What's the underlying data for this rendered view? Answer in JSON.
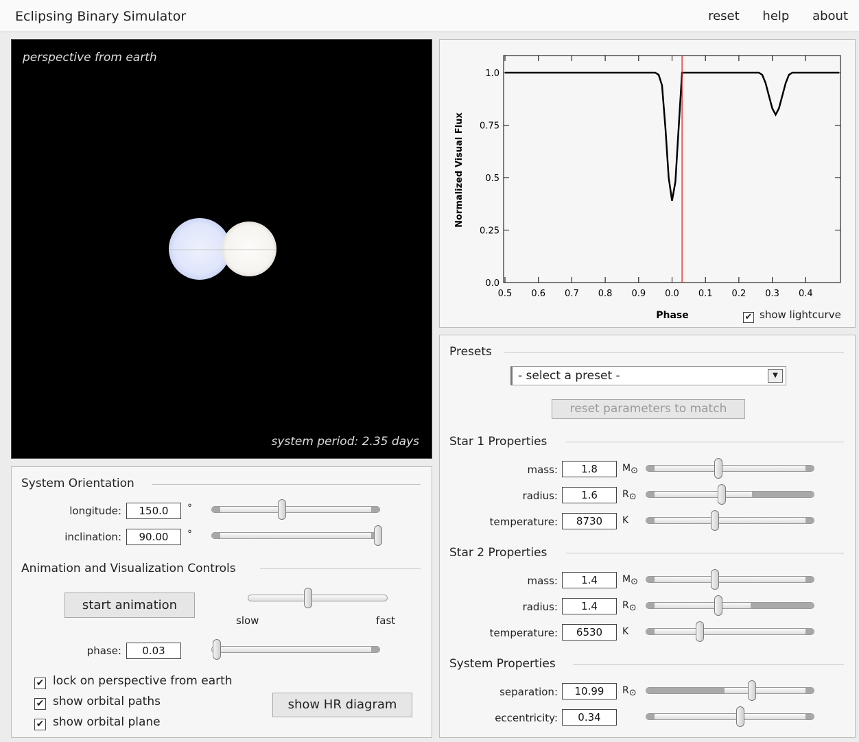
{
  "app": {
    "title": "Eclipsing Binary Simulator",
    "nav": [
      "reset",
      "help",
      "about"
    ]
  },
  "view": {
    "perspective_label": "perspective from earth",
    "period_label": "system period: 2.35 days"
  },
  "orientation": {
    "title": "System Orientation",
    "longitude": {
      "label": "longitude:",
      "value": "150.0",
      "unit": "°",
      "slider_fraction": 0.42
    },
    "inclination": {
      "label": "inclination:",
      "value": "90.00",
      "unit": "°",
      "slider_fraction": 0.99
    }
  },
  "animation": {
    "title": "Animation and Visualization Controls",
    "start_button": "start animation",
    "speed": {
      "slow_label": "slow",
      "fast_label": "fast",
      "slider_fraction": 0.43
    },
    "phase": {
      "label": "phase:",
      "value": "0.03",
      "slider_fraction": 0.03
    },
    "checkboxes": [
      {
        "label": "lock on perspective from earth",
        "checked": true
      },
      {
        "label": "show orbital paths",
        "checked": true
      },
      {
        "label": "show orbital plane",
        "checked": true
      }
    ],
    "hr_button": "show HR diagram"
  },
  "lightcurve": {
    "show_label": "show lightcurve",
    "show_checked": true
  },
  "chart_data": {
    "type": "line",
    "xlabel": "Phase",
    "ylabel": "Normalized Visual Flux",
    "x_tick_labels": [
      "0.5",
      "0.6",
      "0.7",
      "0.8",
      "0.9",
      "0.0",
      "0.1",
      "0.2",
      "0.3",
      "0.4"
    ],
    "y_tick_labels": [
      "0.0",
      "0.25",
      "0.5",
      "0.75",
      "1.0"
    ],
    "x_range": [
      -0.5,
      0.5
    ],
    "ylim": [
      0,
      1.0
    ],
    "current_phase": 0.03,
    "series": [
      {
        "x": [
          -0.5,
          -0.05,
          -0.04,
          -0.03,
          -0.02,
          -0.01,
          0.0,
          0.01,
          0.02,
          0.03,
          0.26,
          0.27,
          0.28,
          0.29,
          0.3,
          0.31,
          0.32,
          0.33,
          0.34,
          0.35,
          0.36,
          0.5
        ],
        "y": [
          1.0,
          1.0,
          0.99,
          0.94,
          0.74,
          0.5,
          0.39,
          0.48,
          0.74,
          1.0,
          1.0,
          0.99,
          0.95,
          0.89,
          0.83,
          0.8,
          0.83,
          0.89,
          0.95,
          0.99,
          1.0,
          1.0
        ]
      }
    ],
    "grid": false
  },
  "presets": {
    "title": "Presets",
    "select_value": "- select a preset -",
    "reset_button": "reset parameters to match"
  },
  "star1": {
    "title": "Star 1 Properties",
    "mass": {
      "label": "mass:",
      "value": "1.8",
      "unit": "M",
      "slider_fraction": 0.43
    },
    "radius": {
      "label": "radius:",
      "value": "1.6",
      "unit": "R",
      "slider_fraction": 0.45
    },
    "temperature": {
      "label": "temperature:",
      "value": "8730",
      "unit": "K",
      "slider_fraction": 0.41
    }
  },
  "star2": {
    "title": "Star 2 Properties",
    "mass": {
      "label": "mass:",
      "value": "1.4",
      "unit": "M",
      "slider_fraction": 0.41
    },
    "radius": {
      "label": "radius:",
      "value": "1.4",
      "unit": "R",
      "slider_fraction": 0.43
    },
    "temperature": {
      "label": "temperature:",
      "value": "6530",
      "unit": "K",
      "slider_fraction": 0.32
    }
  },
  "system": {
    "title": "System Properties",
    "separation": {
      "label": "separation:",
      "value": "10.99",
      "unit": "R",
      "slider_fraction": 0.63
    },
    "eccentricity": {
      "label": "eccentricity:",
      "value": "0.34",
      "slider_fraction": 0.56
    }
  },
  "colors": {
    "star1": "#dfe6fb",
    "star2": "#f8f6f3",
    "phase_marker": "#e02020",
    "curve": "#000000"
  }
}
